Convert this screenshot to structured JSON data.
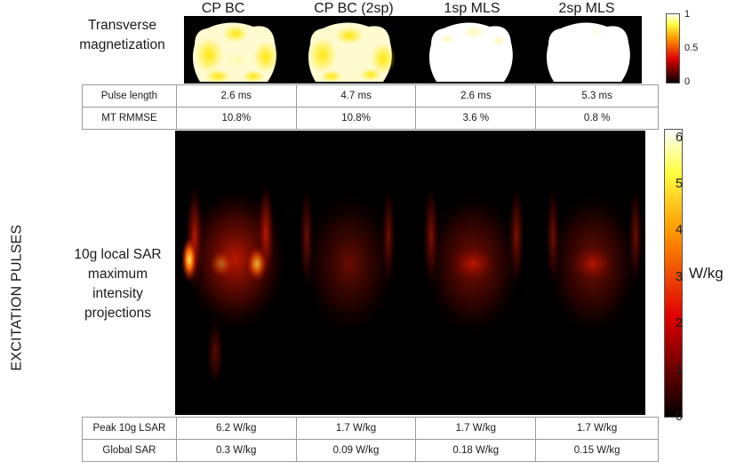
{
  "side_label": "EXCITATION PULSES",
  "columns": [
    "CP BC",
    "CP BC (2sp)",
    "1sp MLS",
    "2sp MLS"
  ],
  "row1_label": [
    "Transverse",
    "magnetization"
  ],
  "row2_label": [
    "10g local SAR",
    "maximum",
    "intensity",
    "projections"
  ],
  "table_top": {
    "rows": [
      {
        "label": "Pulse length",
        "values": [
          "2.6 ms",
          "4.7 ms",
          "2.6 ms",
          "5.3 ms"
        ]
      },
      {
        "label": "MT RMMSE",
        "values": [
          "10.8%",
          "10.8%",
          "3.6 %",
          "0.8 %"
        ]
      }
    ]
  },
  "table_bottom": {
    "rows": [
      {
        "label": "Peak 10g LSAR",
        "values": [
          "6.2 W/kg",
          "1.7 W/kg",
          "1.7 W/kg",
          "1.7 W/kg"
        ]
      },
      {
        "label": "Global SAR",
        "values": [
          "0.3 W/kg",
          "0.09 W/kg",
          "0.18 W/kg",
          "0.15 W/kg"
        ]
      }
    ]
  },
  "colorbar1": {
    "ticks": [
      "1",
      "0.5",
      "0"
    ],
    "range": [
      0,
      1
    ],
    "colormap": "hot"
  },
  "colorbar2": {
    "ticks": [
      "6",
      "5",
      "4",
      "3",
      "2",
      "1",
      "0"
    ],
    "range": [
      0,
      6.2
    ],
    "unit": "W/kg",
    "colormap": "hot"
  },
  "colors": {
    "panel_background": "#000000",
    "hot_low": "#000000",
    "hot_mid": "#ff0000",
    "hot_high": "#ffffff"
  }
}
